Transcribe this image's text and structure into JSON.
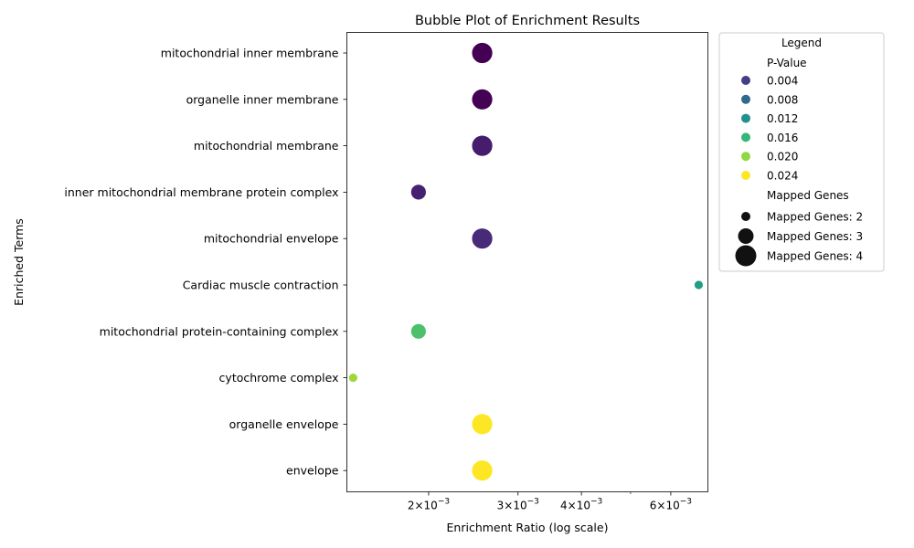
{
  "chart_data": {
    "type": "scatter",
    "title": "Bubble Plot of Enrichment Results",
    "xlabel": "Enrichment Ratio (log scale)",
    "ylabel": "Enriched Terms",
    "x_scale": "log",
    "xlim": [
      0.00138,
      0.0071
    ],
    "grid": false,
    "x_ticks": [
      {
        "value": 0.002,
        "base": "2×10",
        "exp": "−3"
      },
      {
        "value": 0.003,
        "base": "3×10",
        "exp": "−3"
      },
      {
        "value": 0.004,
        "base": "4×10",
        "exp": "−3"
      },
      {
        "value": 0.006,
        "base": "6×10",
        "exp": "−3"
      }
    ],
    "x_minor_ticks": [
      0.005
    ],
    "categories": [
      "mitochondrial inner membrane",
      "organelle inner membrane",
      "mitochondrial membrane",
      "inner mitochondrial membrane protein complex",
      "mitochondrial envelope",
      "Cardiac muscle contraction",
      "mitochondrial protein-containing complex",
      "cytochrome complex",
      "organelle envelope",
      "envelope"
    ],
    "points": [
      {
        "term": "mitochondrial inner membrane",
        "x": 0.00255,
        "p_value": 0.0003,
        "mapped_genes": 4
      },
      {
        "term": "organelle inner membrane",
        "x": 0.00255,
        "p_value": 0.0004,
        "mapped_genes": 4
      },
      {
        "term": "mitochondrial membrane",
        "x": 0.00255,
        "p_value": 0.0022,
        "mapped_genes": 4
      },
      {
        "term": "inner mitochondrial membrane protein complex",
        "x": 0.00191,
        "p_value": 0.0026,
        "mapped_genes": 3
      },
      {
        "term": "mitochondrial envelope",
        "x": 0.00255,
        "p_value": 0.0032,
        "mapped_genes": 4
      },
      {
        "term": "Cardiac muscle contraction",
        "x": 0.00681,
        "p_value": 0.0138,
        "mapped_genes": 2
      },
      {
        "term": "mitochondrial protein-containing complex",
        "x": 0.00191,
        "p_value": 0.0178,
        "mapped_genes": 3
      },
      {
        "term": "cytochrome complex",
        "x": 0.00142,
        "p_value": 0.0212,
        "mapped_genes": 2
      },
      {
        "term": "organelle envelope",
        "x": 0.00255,
        "p_value": 0.0248,
        "mapped_genes": 4
      },
      {
        "term": "envelope",
        "x": 0.00255,
        "p_value": 0.0248,
        "mapped_genes": 4
      }
    ],
    "legend": {
      "title": "Legend",
      "placement": "outside-right",
      "color_title": "P-Value",
      "color_entries": [
        {
          "label": "0.004",
          "color": "#433e85"
        },
        {
          "label": "0.008",
          "color": "#31688e"
        },
        {
          "label": "0.012",
          "color": "#21918c"
        },
        {
          "label": "0.016",
          "color": "#35b779"
        },
        {
          "label": "0.020",
          "color": "#90d743"
        },
        {
          "label": "0.024",
          "color": "#fde725"
        }
      ],
      "size_title": "Mapped Genes",
      "size_entries": [
        {
          "label": "Mapped Genes: 2",
          "mapped_genes": 2
        },
        {
          "label": "Mapped Genes: 3",
          "mapped_genes": 3
        },
        {
          "label": "Mapped Genes: 4",
          "mapped_genes": 4
        }
      ]
    },
    "colormap": "viridis",
    "p_value_range": [
      0.0003,
      0.0248
    ]
  }
}
